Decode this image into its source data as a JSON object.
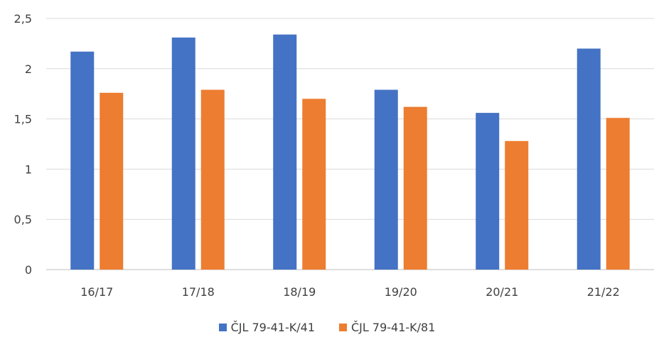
{
  "chart_data": {
    "type": "bar",
    "title": "",
    "xlabel": "",
    "ylabel": "",
    "categories": [
      "16/17",
      "17/18",
      "18/19",
      "19/20",
      "20/21",
      "21/22"
    ],
    "ylim": [
      0,
      2.5
    ],
    "yticks": [
      "0",
      "0,5",
      "1",
      "1,5",
      "2",
      "2,5"
    ],
    "grid": true,
    "legend_position": "bottom",
    "series": [
      {
        "name": "ČJL 79-41-K/41",
        "color": "#4472C4",
        "values": [
          2.17,
          2.31,
          2.34,
          1.79,
          1.56,
          2.2
        ]
      },
      {
        "name": "ČJL 79-41-K/81",
        "color": "#ED7D31",
        "values": [
          1.76,
          1.79,
          1.7,
          1.62,
          1.28,
          1.51
        ]
      }
    ]
  }
}
